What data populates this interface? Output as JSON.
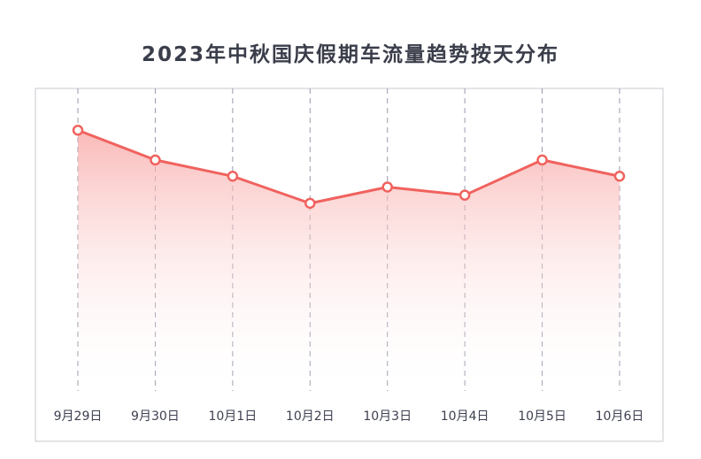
{
  "chart_data": {
    "type": "area",
    "title": "2023年中秋国庆假期车流量趋势按天分布",
    "categories": [
      "9月29日",
      "9月30日",
      "10月1日",
      "10月2日",
      "10月3日",
      "10月4日",
      "10月5日",
      "10月6日"
    ],
    "series": [
      {
        "values": [
          96,
          85,
          79,
          69,
          75,
          72,
          85,
          79
        ]
      }
    ],
    "xlabel": "",
    "ylabel": "",
    "ylim": [
      0,
      100
    ],
    "grid": "vertical-dashed",
    "legend": "none",
    "colors": {
      "line": "#f0625e",
      "marker_fill": "#ffffff",
      "area_top": "#f7a3a1",
      "area_bottom": "#ffffff",
      "frame": "#c9c9d0",
      "grid": "#9a9aae",
      "title": "#3a3d4a",
      "tick": "#3d4050"
    }
  }
}
